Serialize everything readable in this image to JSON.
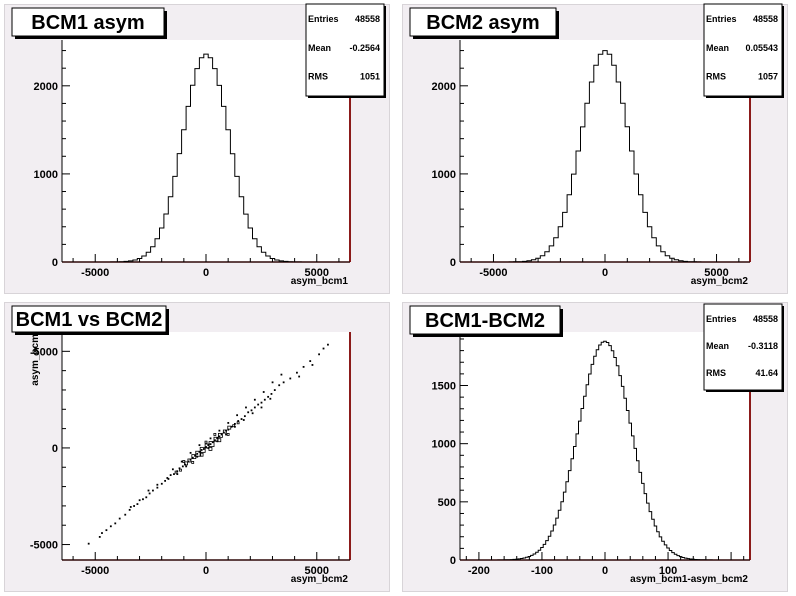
{
  "colors": {
    "pad_background": "#f2eef2",
    "frame_right": "#8b1a1a",
    "line": "#000000"
  },
  "chart_data": [
    {
      "type": "histogram",
      "title": "BCM1 asym",
      "xlabel": "asym_bcm1",
      "ylabel": "",
      "xlim": [
        -6500,
        6500
      ],
      "ylim": [
        0,
        2520
      ],
      "xticks": [
        -5000,
        0,
        5000
      ],
      "yticks": [
        0,
        1000,
        2000
      ],
      "stats": {
        "Entries": "48558",
        "Mean": "-0.2564",
        "RMS": "1051"
      },
      "fit": {
        "entries": 48558,
        "mean": -0.2564,
        "rms": 1051,
        "bin_width": 200,
        "peak": 2360
      }
    },
    {
      "type": "histogram",
      "title": "BCM2 asym",
      "xlabel": "asym_bcm2",
      "ylabel": "",
      "xlim": [
        -6500,
        6500
      ],
      "ylim": [
        0,
        2520
      ],
      "xticks": [
        -5000,
        0,
        5000
      ],
      "yticks": [
        0,
        1000,
        2000
      ],
      "stats": {
        "Entries": "48558",
        "Mean": "0.05543",
        "RMS": "1057"
      },
      "fit": {
        "entries": 48558,
        "mean": 0.05543,
        "rms": 1057,
        "bin_width": 200,
        "peak": 2400
      }
    },
    {
      "type": "scatter",
      "title": "BCM1 vs BCM2",
      "xlabel": "asym_bcm2",
      "ylabel": "asym_bcm",
      "xlim": [
        -6500,
        6500
      ],
      "ylim": [
        -5800,
        6000
      ],
      "xticks": [
        -5000,
        0,
        5000
      ],
      "yticks": [
        -5000,
        0,
        5000
      ],
      "points": [
        [
          -5300,
          -4950
        ],
        [
          -4800,
          -4600
        ],
        [
          -4700,
          -4400
        ],
        [
          -4500,
          -4250
        ],
        [
          -4300,
          -4050
        ],
        [
          -4100,
          -3900
        ],
        [
          -3900,
          -3650
        ],
        [
          -3650,
          -3450
        ],
        [
          -3450,
          -3200
        ],
        [
          -3250,
          -3000
        ],
        [
          -3100,
          -2900
        ],
        [
          -2850,
          -2650
        ],
        [
          -2700,
          -2550
        ],
        [
          -2550,
          -2350
        ],
        [
          -2400,
          -2200
        ],
        [
          -2200,
          -2050
        ],
        [
          -2000,
          -1850
        ],
        [
          -1850,
          -1700
        ],
        [
          -1750,
          -1550
        ],
        [
          -1600,
          -1400
        ],
        [
          -1450,
          -1350
        ],
        [
          -1300,
          -1200
        ],
        [
          -1200,
          -1050
        ],
        [
          -1050,
          -950
        ],
        [
          -950,
          -850
        ],
        [
          -800,
          -700
        ],
        [
          -700,
          -600
        ],
        [
          -600,
          -500
        ],
        [
          -500,
          -400
        ],
        [
          -400,
          -300
        ],
        [
          -300,
          -200
        ],
        [
          -200,
          -100
        ],
        [
          -100,
          -50
        ],
        [
          0,
          50
        ],
        [
          100,
          150
        ],
        [
          200,
          200
        ],
        [
          300,
          300
        ],
        [
          400,
          400
        ],
        [
          500,
          500
        ],
        [
          600,
          600
        ],
        [
          700,
          700
        ],
        [
          800,
          800
        ],
        [
          900,
          900
        ],
        [
          1000,
          950
        ],
        [
          1150,
          1100
        ],
        [
          1300,
          1250
        ],
        [
          1450,
          1400
        ],
        [
          1600,
          1500
        ],
        [
          1750,
          1650
        ],
        [
          1900,
          1850
        ],
        [
          2050,
          1950
        ],
        [
          2200,
          2100
        ],
        [
          2350,
          2250
        ],
        [
          2500,
          2350
        ],
        [
          2650,
          2500
        ],
        [
          2800,
          2650
        ],
        [
          2950,
          2800
        ],
        [
          3100,
          3000
        ],
        [
          3300,
          3250
        ],
        [
          3500,
          3400
        ],
        [
          3800,
          3600
        ],
        [
          4100,
          3900
        ],
        [
          4400,
          4200
        ],
        [
          4700,
          4500
        ],
        [
          5100,
          4850
        ],
        [
          5300,
          5150
        ],
        [
          5500,
          5350
        ],
        [
          -1500,
          -1100
        ],
        [
          -1100,
          -700
        ],
        [
          -700,
          -250
        ],
        [
          -300,
          150
        ],
        [
          200,
          500
        ],
        [
          600,
          900
        ],
        [
          1000,
          1300
        ],
        [
          1400,
          1700
        ],
        [
          1800,
          2100
        ],
        [
          2200,
          2500
        ],
        [
          2600,
          2900
        ],
        [
          3000,
          3400
        ],
        [
          3400,
          3800
        ],
        [
          -1700,
          -1600
        ],
        [
          -1300,
          -1350
        ],
        [
          -900,
          -950
        ],
        [
          -400,
          -450
        ],
        [
          100,
          0
        ],
        [
          500,
          350
        ],
        [
          900,
          700
        ],
        [
          1300,
          1100
        ],
        [
          1700,
          1450
        ],
        [
          2100,
          1800
        ],
        [
          2500,
          2100
        ],
        [
          2900,
          2550
        ],
        [
          -2600,
          -2200
        ],
        [
          -2200,
          -1900
        ],
        [
          -3000,
          -2700
        ],
        [
          -3400,
          -3050
        ],
        [
          4200,
          3700
        ],
        [
          4800,
          4300
        ]
      ],
      "boxes": [
        [
          -1150,
          -1150,
          2
        ],
        [
          -750,
          -650,
          3
        ],
        [
          -550,
          -450,
          4
        ],
        [
          -350,
          -300,
          5
        ],
        [
          -150,
          -100,
          5
        ],
        [
          50,
          100,
          4
        ],
        [
          250,
          200,
          5
        ],
        [
          450,
          450,
          4
        ],
        [
          650,
          650,
          4
        ],
        [
          850,
          850,
          3
        ],
        [
          1050,
          1050,
          3
        ],
        [
          1250,
          1150,
          2
        ],
        [
          1450,
          1300,
          2
        ],
        [
          -900,
          -800,
          3
        ],
        [
          -1350,
          -1250,
          2
        ],
        [
          -600,
          -750,
          2
        ],
        [
          -200,
          -350,
          3
        ],
        [
          200,
          -50,
          3
        ],
        [
          600,
          400,
          3
        ],
        [
          1000,
          700,
          2
        ],
        [
          -1000,
          -700,
          2
        ],
        [
          0,
          300,
          2
        ],
        [
          400,
          700,
          2
        ]
      ]
    },
    {
      "type": "histogram",
      "title": "BCM1-BCM2",
      "xlabel": "asym_bcm1-asym_bcm2",
      "ylabel": "",
      "xlim": [
        -230,
        230
      ],
      "ylim": [
        0,
        1960
      ],
      "xticks": [
        -200,
        -100,
        0,
        100
      ],
      "yticks": [
        0,
        500,
        1000,
        1500
      ],
      "stats": {
        "Entries": "48558",
        "Mean": "-0.3118",
        "RMS": "41.64"
      },
      "fit": {
        "entries": 48558,
        "mean": -0.3118,
        "rms": 41.64,
        "bin_width": 4,
        "peak": 1880
      }
    }
  ]
}
